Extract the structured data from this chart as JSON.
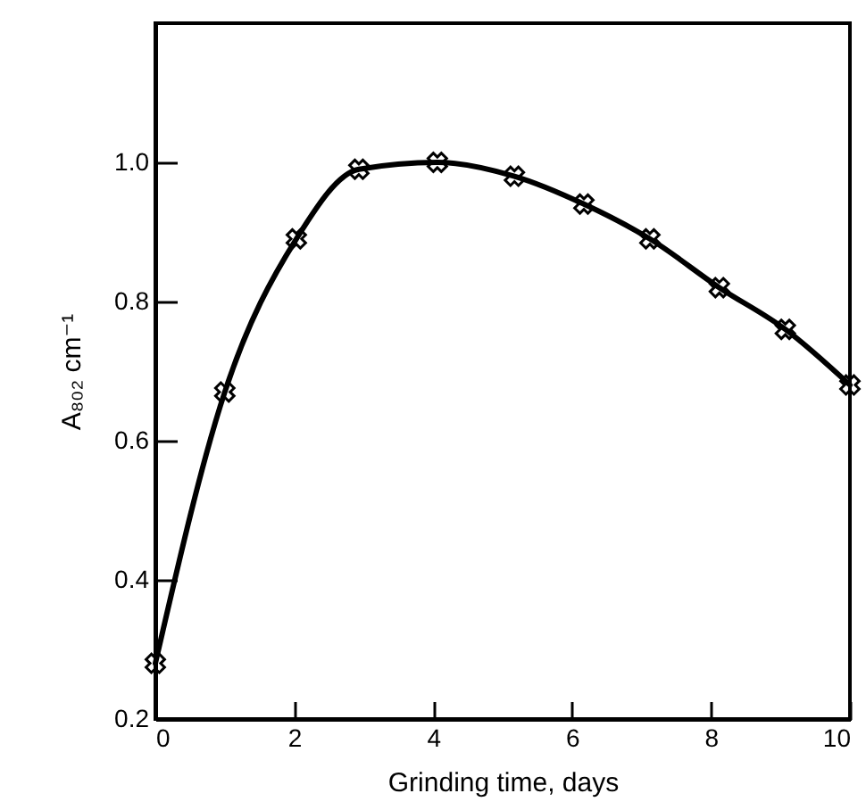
{
  "chart_data": {
    "type": "line",
    "xlabel": "Grinding time,    days",
    "ylabel": "A₈₀₂    cm⁻¹",
    "x": [
      0,
      1,
      2.03,
      2.93,
      4.06,
      5.17,
      6.17,
      7.12,
      8.12,
      9.07,
      10
    ],
    "series": [
      {
        "color": "#000000",
        "values": [
          0.28,
          0.67,
          0.89,
          0.99,
          1.0,
          0.98,
          0.94,
          0.89,
          0.82,
          0.76,
          0.68
        ]
      }
    ],
    "xlim": [
      0,
      10
    ],
    "xticks": [
      0,
      2,
      4,
      6,
      8,
      10
    ],
    "ylim": [
      0.2,
      1.2
    ],
    "yticks": [
      {
        "value": 0.2,
        "label": "0.2"
      },
      {
        "value": 0.4,
        "label": "0.4"
      },
      {
        "value": 0.6,
        "label": "0.6"
      },
      {
        "value": 0.8,
        "label": "0.8"
      },
      {
        "value": 1.0,
        "label": "1.0"
      }
    ],
    "marker": "cross",
    "line_style": "solid",
    "grid": false
  }
}
